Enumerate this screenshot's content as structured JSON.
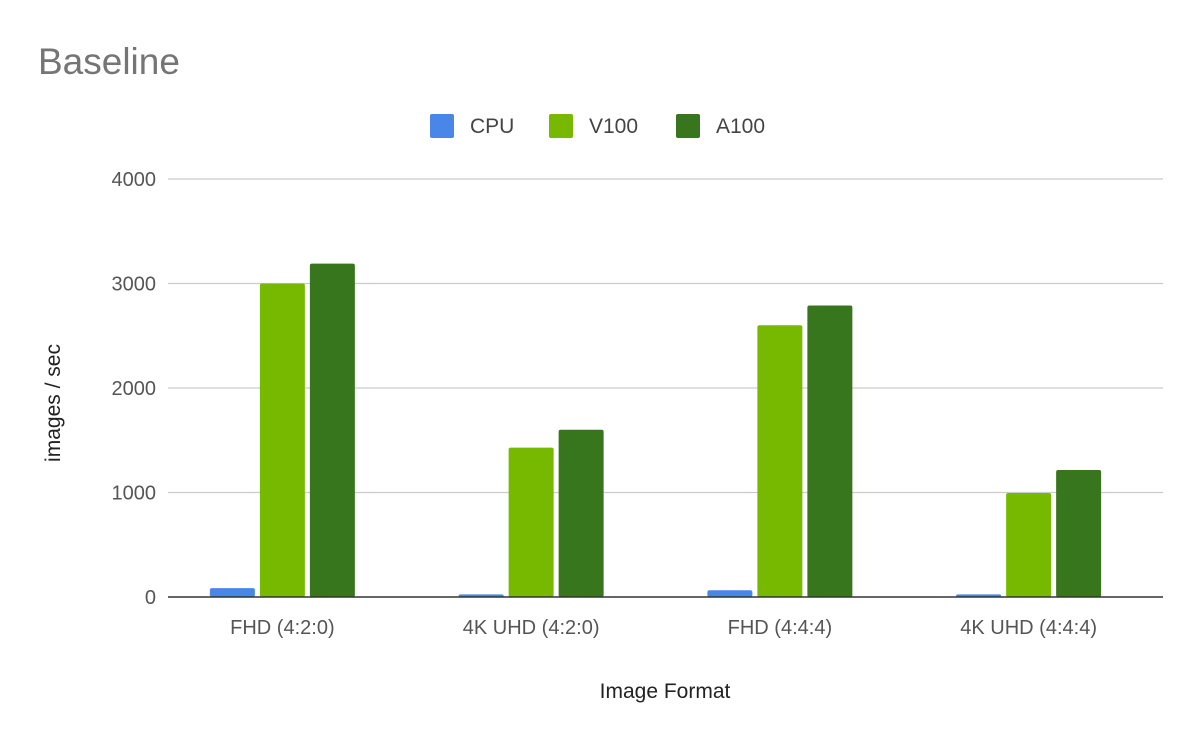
{
  "chart_data": {
    "type": "bar",
    "title": "Baseline",
    "xlabel": "Image Format",
    "ylabel": "images / sec",
    "categories": [
      "FHD (4:2:0)",
      "4K UHD (4:2:0)",
      "FHD (4:4:4)",
      "4K UHD (4:4:4)"
    ],
    "series": [
      {
        "name": "CPU",
        "color": "#4a86e8",
        "values": [
          85,
          25,
          65,
          25
        ]
      },
      {
        "name": "V100",
        "color": "#76b900",
        "values": [
          3000,
          1430,
          2600,
          995
        ]
      },
      {
        "name": "A100",
        "color": "#38761d",
        "values": [
          3190,
          1600,
          2790,
          1215
        ]
      }
    ],
    "ylim": [
      0,
      4000
    ],
    "yticks": [
      "0",
      "1000",
      "2000",
      "3000",
      "4000"
    ],
    "grid": true,
    "legend_position": "top-center"
  }
}
